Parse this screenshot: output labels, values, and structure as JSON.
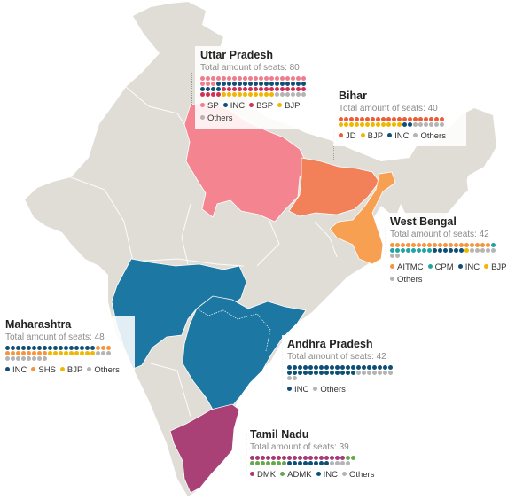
{
  "colors": {
    "background": "#ffffff",
    "land": "#dfddd6",
    "border": "#ffffff",
    "uttar_pradesh": "#f4848f",
    "bihar": "#f28058",
    "west_bengal": "#f8a052",
    "maharashtra": "#1d77a3",
    "andhra_pradesh": "#1d77a3",
    "tamil_nadu": "#a94076"
  },
  "parties": {
    "SP": "#ee7e8e",
    "INC": "#0d4f75",
    "BSP": "#d22f55",
    "BJP": "#f0b700",
    "Others": "#b4b4b4",
    "JD": "#ee5b34",
    "AITMC": "#f7953c",
    "CPM": "#20a4a4",
    "SHS": "#f7953c",
    "DMK": "#a63a74",
    "ADMK": "#68a84d"
  },
  "states": [
    {
      "id": "uttar-pradesh",
      "name": "Uttar Pradesh",
      "subtitle": "Total amount of seats: 80",
      "columns": 20,
      "seats": [
        {
          "party": "SP",
          "count": 23
        },
        {
          "party": "INC",
          "count": 21
        },
        {
          "party": "BSP",
          "count": 20
        },
        {
          "party": "BJP",
          "count": 10
        },
        {
          "party": "Others",
          "count": 6
        }
      ],
      "legend": [
        "SP",
        "INC",
        "BSP",
        "BJP",
        "Others"
      ]
    },
    {
      "id": "bihar",
      "name": "Bihar",
      "subtitle": "Total amount of seats: 40",
      "columns": 20,
      "seats": [
        {
          "party": "JD",
          "count": 20
        },
        {
          "party": "BJP",
          "count": 12
        },
        {
          "party": "INC",
          "count": 2
        },
        {
          "party": "Others",
          "count": 6
        }
      ],
      "legend": [
        "JD",
        "BJP",
        "INC",
        "Others"
      ]
    },
    {
      "id": "west-bengal",
      "name": "West Bengal",
      "subtitle": "Total amount of seats: 42",
      "columns": 20,
      "seats": [
        {
          "party": "AITMC",
          "count": 19
        },
        {
          "party": "CPM",
          "count": 9
        },
        {
          "party": "INC",
          "count": 6
        },
        {
          "party": "BJP",
          "count": 1
        },
        {
          "party": "Others",
          "count": 7
        }
      ],
      "legend": [
        "AITMC",
        "CPM",
        "INC",
        "BJP",
        "Others"
      ]
    },
    {
      "id": "maharashtra",
      "name": "Maharashtra",
      "subtitle": "Total amount of seats: 48",
      "columns": 20,
      "seats": [
        {
          "party": "INC",
          "count": 17
        },
        {
          "party": "SHS",
          "count": 11
        },
        {
          "party": "BJP",
          "count": 9
        },
        {
          "party": "Others",
          "count": 11
        }
      ],
      "legend": [
        "INC",
        "SHS",
        "BJP",
        "Others"
      ]
    },
    {
      "id": "andhra-pradesh",
      "name": "Andhra Pradesh",
      "subtitle": "Total amount of seats: 42",
      "columns": 20,
      "seats": [
        {
          "party": "INC",
          "count": 33
        },
        {
          "party": "Others",
          "count": 9
        }
      ],
      "legend": [
        "INC",
        "Others"
      ]
    },
    {
      "id": "tamil-nadu",
      "name": "Tamil Nadu",
      "subtitle": "Total amount of seats: 39",
      "columns": 20,
      "seats": [
        {
          "party": "DMK",
          "count": 18
        },
        {
          "party": "ADMK",
          "count": 9
        },
        {
          "party": "INC",
          "count": 8
        },
        {
          "party": "Others",
          "count": 4
        }
      ],
      "legend": [
        "DMK",
        "ADMK",
        "INC",
        "Others"
      ]
    }
  ]
}
